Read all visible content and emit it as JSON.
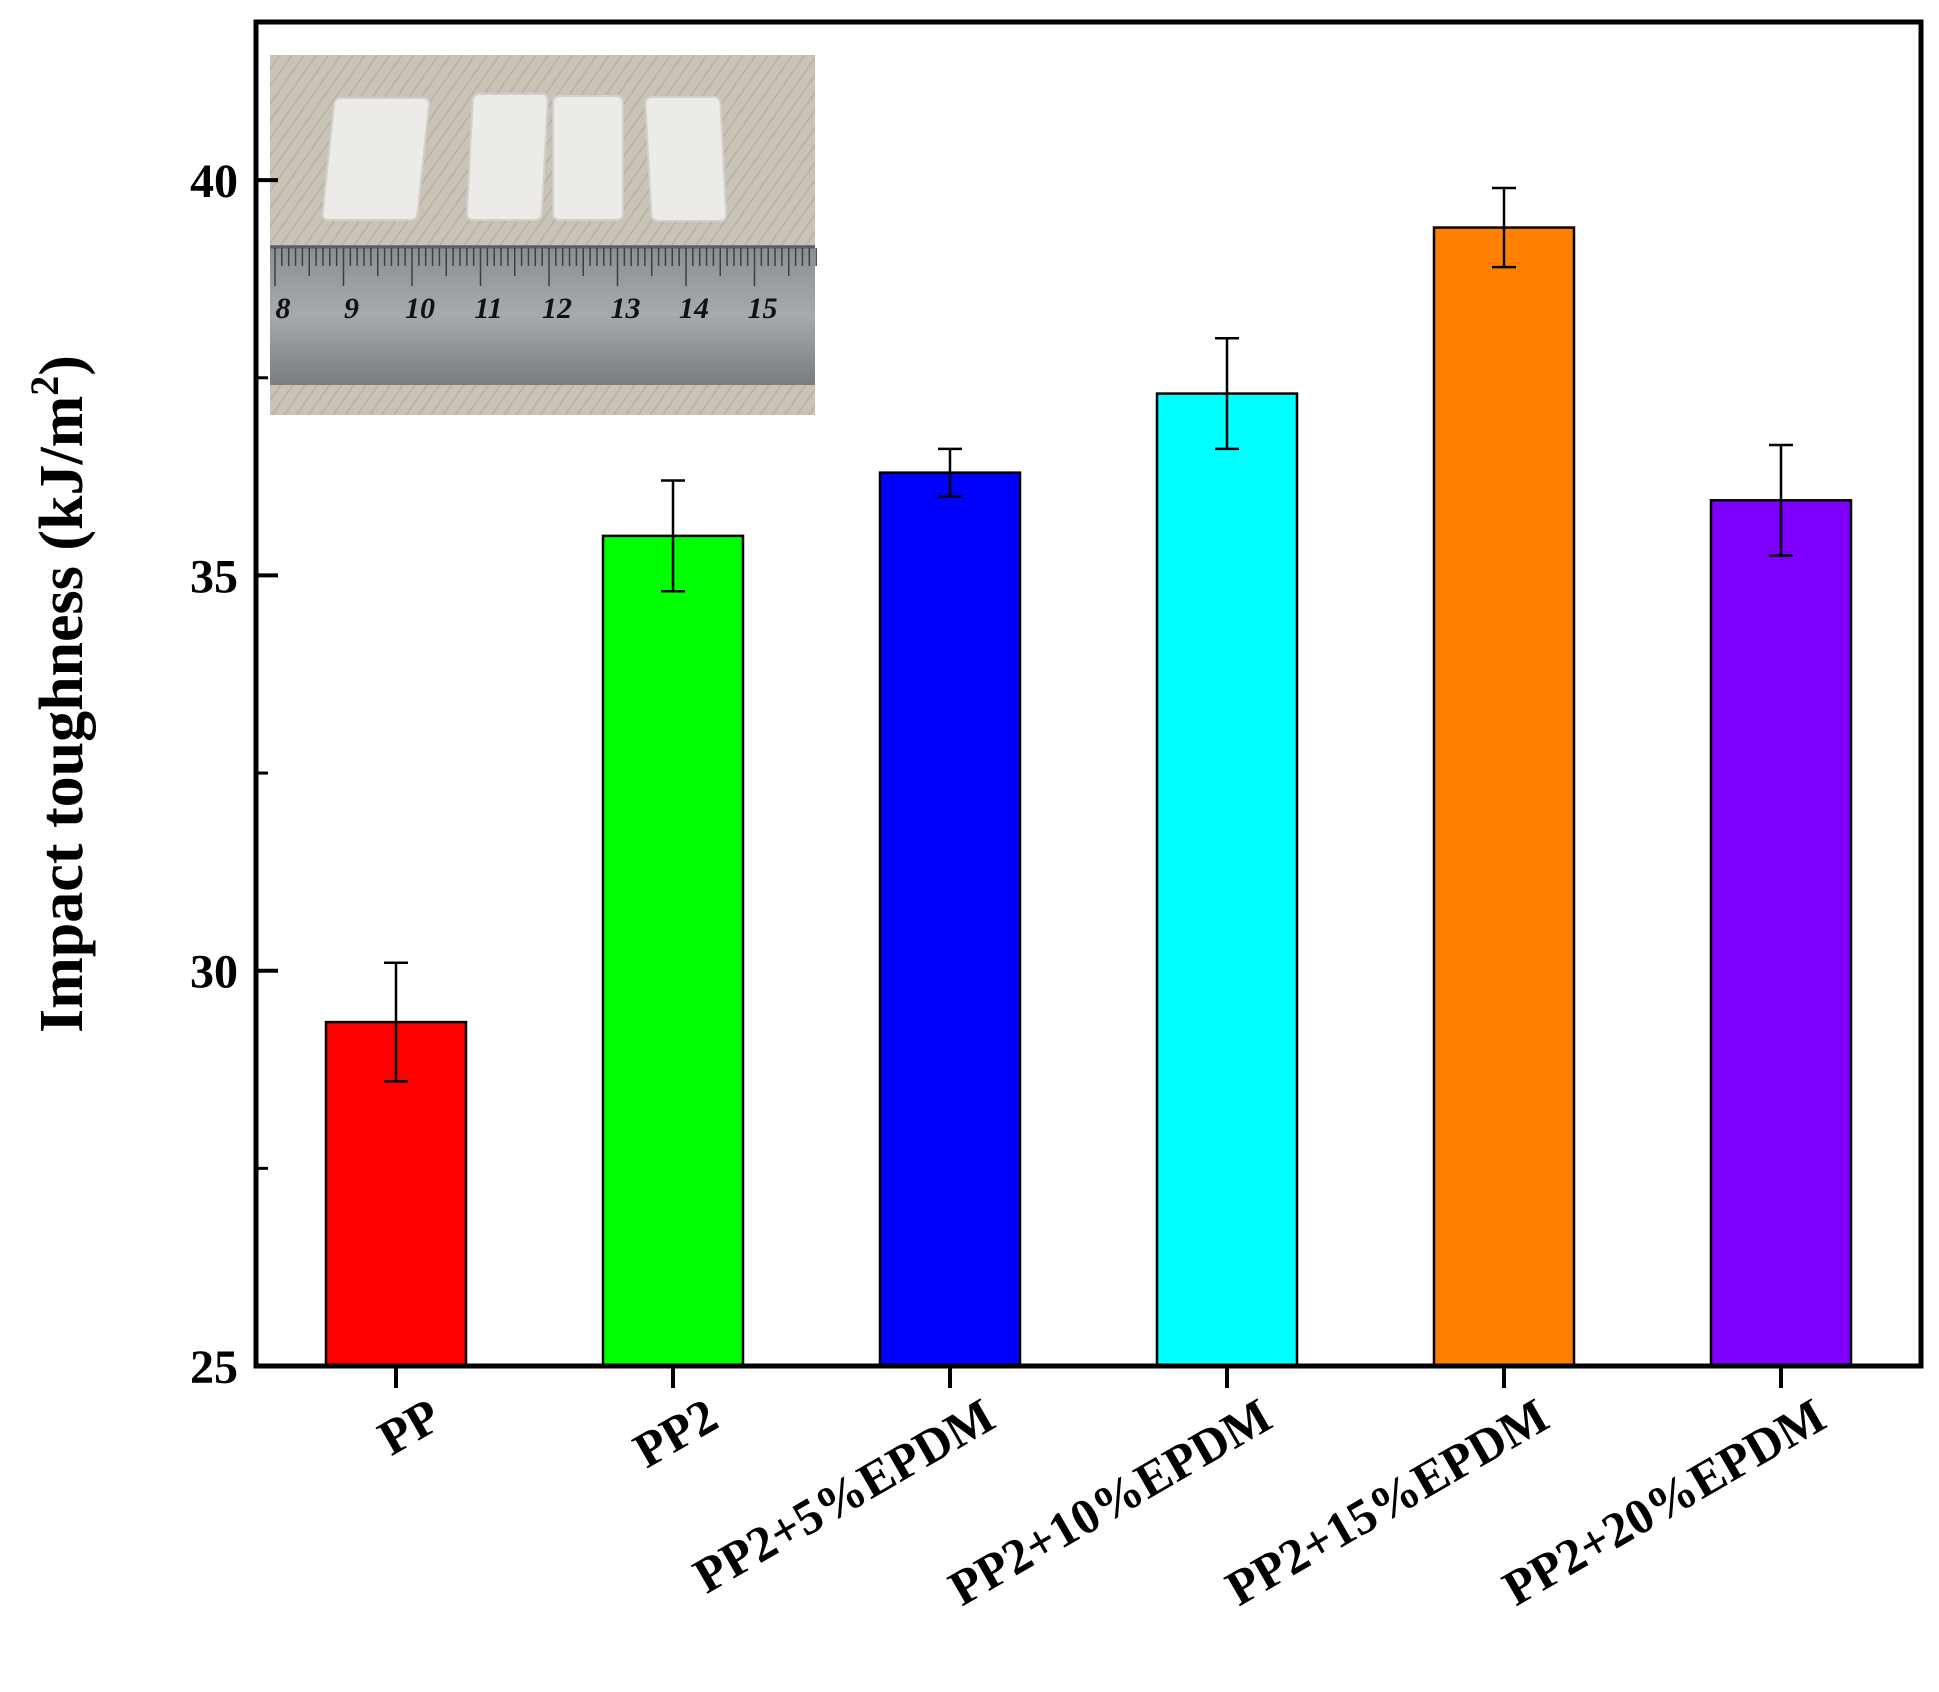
{
  "chart_data": {
    "type": "bar",
    "categories": [
      "PP",
      "PP2",
      "PP2+5%EPDM",
      "PP2+10%EPDM",
      "PP2+15%EPDM",
      "PP2+20%EPDM"
    ],
    "values": [
      29.35,
      35.5,
      36.3,
      37.3,
      39.4,
      35.95
    ],
    "errors": [
      0.75,
      0.7,
      0.3,
      0.7,
      0.5,
      0.7
    ],
    "colors": [
      "#ff0000",
      "#00ff00",
      "#0000ff",
      "#00ffff",
      "#ff8000",
      "#8000ff"
    ],
    "title": "",
    "xlabel": "",
    "ylabel": "Impact toughness (kJ/m",
    "ylabel_sup": "2",
    "ylabel_close": ")",
    "ylim": [
      25,
      42
    ],
    "yticks": [
      25,
      30,
      35,
      40
    ],
    "grid": false,
    "inset": {
      "description_icon": "photo-icon",
      "ruler_numbers": [
        "8",
        "9",
        "10",
        "11",
        "12",
        "13",
        "14",
        "15"
      ]
    }
  }
}
